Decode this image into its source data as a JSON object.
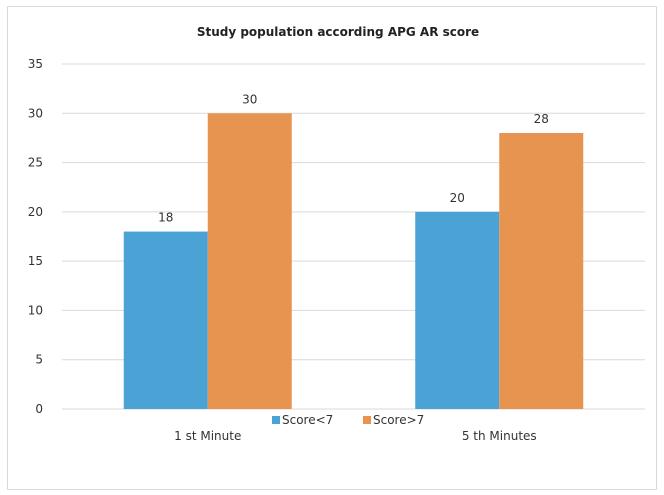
{
  "chart_data": {
    "type": "bar",
    "title": "Study population  according  APG AR score",
    "categories": [
      "1 st Minute",
      "5 th Minutes"
    ],
    "series": [
      {
        "name": "Score<7",
        "values": [
          18,
          20
        ],
        "color": "#4aa3d4"
      },
      {
        "name": "Score>7",
        "values": [
          30,
          28
        ],
        "color": "#e69450"
      }
    ],
    "ylim": [
      0,
      35
    ],
    "yticks": [
      0,
      5,
      10,
      15,
      20,
      25,
      30,
      35
    ],
    "grid": true,
    "legend": "bottom",
    "gridColor": "#d9d9d9"
  }
}
